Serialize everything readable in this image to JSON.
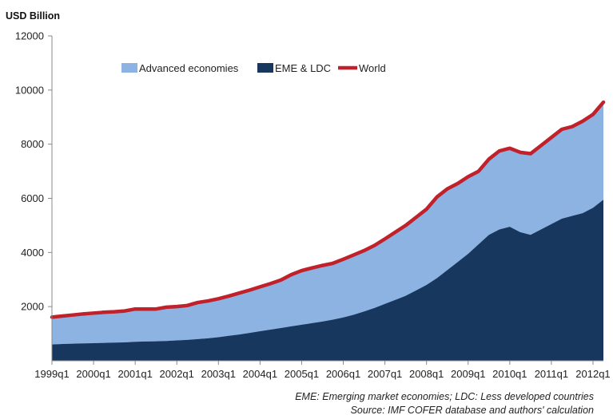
{
  "chart_data": {
    "type": "area",
    "ylabel": "USD Billion",
    "ylim": [
      0,
      12000
    ],
    "yticks": [
      2000,
      4000,
      6000,
      8000,
      10000,
      12000
    ],
    "grid": false,
    "legend_position": "top",
    "x": [
      "1999q1",
      "1999q2",
      "1999q3",
      "1999q4",
      "2000q1",
      "2000q2",
      "2000q3",
      "2000q4",
      "2001q1",
      "2001q2",
      "2001q3",
      "2001q4",
      "2002q1",
      "2002q2",
      "2002q3",
      "2002q4",
      "2003q1",
      "2003q2",
      "2003q3",
      "2003q4",
      "2004q1",
      "2004q2",
      "2004q3",
      "2004q4",
      "2005q1",
      "2005q2",
      "2005q3",
      "2005q4",
      "2006q1",
      "2006q2",
      "2006q3",
      "2006q4",
      "2007q1",
      "2007q2",
      "2007q3",
      "2007q4",
      "2008q1",
      "2008q2",
      "2008q3",
      "2008q4",
      "2009q1",
      "2009q2",
      "2009q3",
      "2009q4",
      "2010q1",
      "2010q2",
      "2010q3",
      "2010q4",
      "2011q1",
      "2011q2",
      "2011q3",
      "2011q4",
      "2012q1",
      "2012q2"
    ],
    "x_tick_labels": [
      "1999q1",
      "2000q1",
      "2001q1",
      "2002q1",
      "2003q1",
      "2004q1",
      "2005q1",
      "2006q1",
      "2007q1",
      "2008q1",
      "2009q1",
      "2010q1",
      "2011q1",
      "2012q1"
    ],
    "series": [
      {
        "name": "Advanced economies",
        "color": "#8db3e2",
        "values": [
          1010,
          1030,
          1060,
          1090,
          1110,
          1130,
          1140,
          1160,
          1210,
          1200,
          1190,
          1250,
          1250,
          1270,
          1350,
          1380,
          1420,
          1470,
          1530,
          1580,
          1640,
          1700,
          1770,
          1910,
          2000,
          2040,
          2070,
          2080,
          2150,
          2210,
          2250,
          2310,
          2400,
          2500,
          2600,
          2700,
          2800,
          3000,
          3000,
          2900,
          2850,
          2700,
          2800,
          2900,
          2900,
          2950,
          3000,
          3100,
          3200,
          3300,
          3300,
          3400,
          3450,
          3600
        ]
      },
      {
        "name": "EME & LDC",
        "color": "#17375e",
        "values": [
          600,
          620,
          630,
          640,
          650,
          660,
          670,
          680,
          700,
          710,
          720,
          730,
          750,
          770,
          800,
          830,
          870,
          920,
          970,
          1030,
          1090,
          1150,
          1210,
          1270,
          1330,
          1390,
          1450,
          1520,
          1600,
          1700,
          1820,
          1950,
          2100,
          2250,
          2400,
          2600,
          2800,
          3050,
          3350,
          3650,
          3950,
          4300,
          4650,
          4850,
          4950,
          4750,
          4650,
          4850,
          5050,
          5250,
          5350,
          5450,
          5650,
          5950
        ]
      },
      {
        "name": "World",
        "color": "#c0212a",
        "values": [
          1610,
          1650,
          1690,
          1730,
          1760,
          1790,
          1810,
          1840,
          1910,
          1910,
          1910,
          1980,
          2000,
          2040,
          2150,
          2210,
          2290,
          2390,
          2500,
          2610,
          2730,
          2850,
          2980,
          3180,
          3330,
          3430,
          3520,
          3600,
          3750,
          3910,
          4070,
          4260,
          4500,
          4750,
          5000,
          5300,
          5600,
          6050,
          6350,
          6550,
          6800,
          7000,
          7450,
          7750,
          7850,
          7700,
          7650,
          7950,
          8250,
          8550,
          8650,
          8850,
          9100,
          9550
        ]
      }
    ]
  },
  "notes": {
    "line1": "EME: Emerging market economies; LDC: Less developed countries",
    "line2": "Source: IMF COFER database and authors' calculation"
  }
}
